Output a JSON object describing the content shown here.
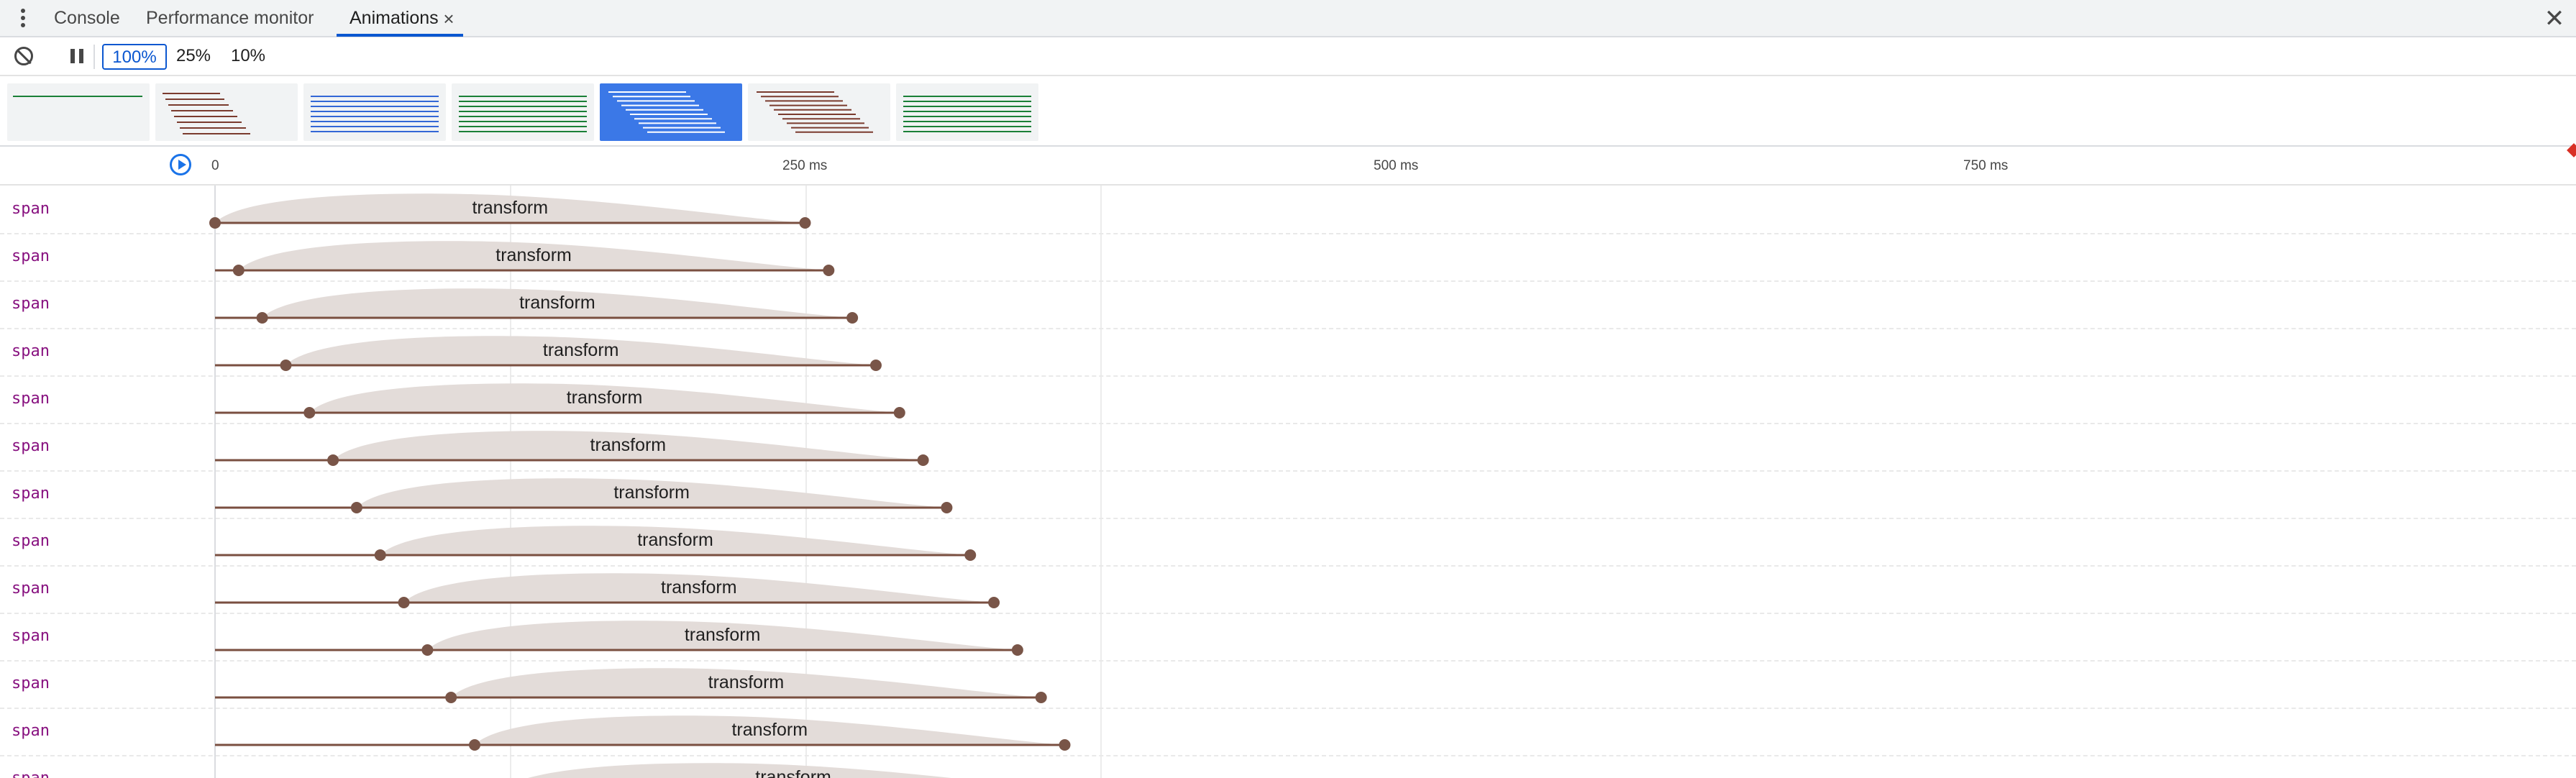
{
  "tabs": [
    {
      "label": "Console",
      "active": false
    },
    {
      "label": "Performance monitor",
      "active": false
    },
    {
      "label": "Animations",
      "active": true,
      "closable": true
    }
  ],
  "tab_close_glyph": "×",
  "panel_close_glyph": "✕",
  "toolbar": {
    "clear_icon": "block-icon",
    "pause_icon": "pause-icon",
    "playback_rates": [
      "100%",
      "25%",
      "10%"
    ],
    "selected_rate": "100%"
  },
  "previews": [
    {
      "color": "#1a7f37",
      "style": "single",
      "selected": false
    },
    {
      "color": "#7a3b2e",
      "style": "staggered",
      "selected": false
    },
    {
      "color": "#3367d6",
      "style": "lines",
      "selected": false
    },
    {
      "color": "#1a7f37",
      "style": "lines",
      "selected": false
    },
    {
      "color": "#ffffff",
      "style": "staggered-wide",
      "selected": true
    },
    {
      "color": "#7a3b2e",
      "style": "staggered-wide",
      "selected": false
    },
    {
      "color": "#1a7f37",
      "style": "lines",
      "selected": false
    }
  ],
  "timeline": {
    "ticks_ms": [
      0,
      250,
      500,
      750
    ],
    "tick_labels": [
      "0",
      "250 ms",
      "500 ms",
      "750 ms"
    ],
    "replay_icon": "replay-icon",
    "curve_fill": "#e3dcd9",
    "line_color": "#7a4f40",
    "dot_color": "#795548"
  },
  "animations": [
    {
      "node": "span",
      "name": "transform",
      "delay_ms": 0,
      "duration_ms": 500
    },
    {
      "node": "span",
      "name": "transform",
      "delay_ms": 20,
      "duration_ms": 500
    },
    {
      "node": "span",
      "name": "transform",
      "delay_ms": 40,
      "duration_ms": 500
    },
    {
      "node": "span",
      "name": "transform",
      "delay_ms": 60,
      "duration_ms": 500
    },
    {
      "node": "span",
      "name": "transform",
      "delay_ms": 80,
      "duration_ms": 500
    },
    {
      "node": "span",
      "name": "transform",
      "delay_ms": 100,
      "duration_ms": 500
    },
    {
      "node": "span",
      "name": "transform",
      "delay_ms": 120,
      "duration_ms": 500
    },
    {
      "node": "span",
      "name": "transform",
      "delay_ms": 140,
      "duration_ms": 500
    },
    {
      "node": "span",
      "name": "transform",
      "delay_ms": 160,
      "duration_ms": 500
    },
    {
      "node": "span",
      "name": "transform",
      "delay_ms": 180,
      "duration_ms": 500
    },
    {
      "node": "span",
      "name": "transform",
      "delay_ms": 200,
      "duration_ms": 500
    },
    {
      "node": "span",
      "name": "transform",
      "delay_ms": 220,
      "duration_ms": 500
    },
    {
      "node": "span",
      "name": "transform",
      "delay_ms": 240,
      "duration_ms": 500
    }
  ]
}
